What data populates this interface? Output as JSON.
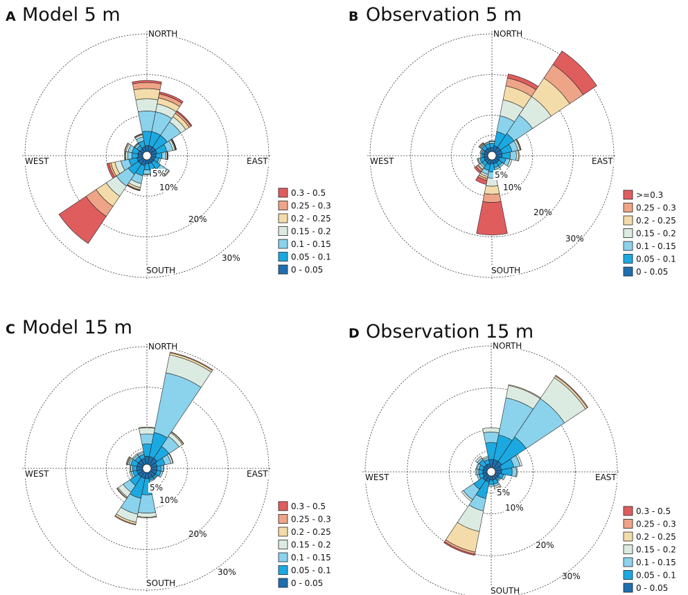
{
  "colors": {
    "bins": [
      "#1f6fb0",
      "#1ca9e1",
      "#8bd2ec",
      "#dcebe2",
      "#f4dcaa",
      "#eea487",
      "#e05d5e"
    ]
  },
  "chart_data": [
    {
      "panel": "A",
      "title": "Model 5 m",
      "type": "windrose",
      "directions": [
        "N",
        "NNE",
        "NE",
        "ENE",
        "E",
        "ESE",
        "SE",
        "SSE",
        "S",
        "SSW",
        "SW",
        "WSW",
        "W",
        "WNW",
        "NW",
        "NNW"
      ],
      "rings": [
        5,
        10,
        20,
        30
      ],
      "ring_labels": [
        "5%",
        "10%",
        "20%",
        "30%"
      ],
      "compass_labels": {
        "north": "NORTH",
        "south": "SOUTH",
        "east": "EAST",
        "west": "WEST"
      },
      "legend": [
        "0.3 - 0.5",
        "0.25 - 0.3",
        "0.2 - 0.25",
        "0.15 - 0.2",
        "0.1 - 0.15",
        "0.05 - 0.1",
        "0 - 0.05"
      ],
      "bins": [
        "0 - 0.05",
        "0.05 - 0.1",
        "0.1 - 0.15",
        "0.15 - 0.2",
        "0.2 - 0.25",
        "0.25 - 0.3",
        "0.3 - 0.5"
      ],
      "frequencies": [
        [
          1.5,
          3.5,
          5,
          3,
          2.5,
          1.5,
          0.5
        ],
        [
          1.5,
          3.5,
          5,
          2,
          1.5,
          1,
          0.5
        ],
        [
          1.5,
          3.5,
          4,
          1.5,
          1,
          0.5,
          0.3
        ],
        [
          1.5,
          2.5,
          1.5,
          0.5,
          0.2,
          0.1,
          0.1
        ],
        [
          1.2,
          1.5,
          1,
          0.3,
          0.1,
          0.1,
          0
        ],
        [
          1.0,
          1,
          0.5,
          0,
          0,
          0,
          0
        ],
        [
          1.0,
          2,
          2,
          0.5,
          0.2,
          0,
          0
        ],
        [
          1.0,
          1.5,
          1.5,
          0.5,
          0.1,
          0,
          0
        ],
        [
          1.0,
          1.5,
          1,
          0.2,
          0,
          0,
          0
        ],
        [
          1.5,
          2.5,
          2,
          1,
          0.5,
          0.2,
          0.1
        ],
        [
          1.5,
          3,
          3.5,
          3,
          3,
          3,
          8
        ],
        [
          1.5,
          2,
          2,
          1.5,
          1,
          0.5,
          0.5
        ],
        [
          1.2,
          1.5,
          1,
          0.5,
          0.2,
          0.1,
          0
        ],
        [
          1.2,
          1.5,
          1,
          0.5,
          0.3,
          0.1,
          0
        ],
        [
          1.0,
          1,
          0.5,
          0.2,
          0.1,
          0,
          0
        ],
        [
          1.2,
          1.5,
          1,
          0.5,
          0.2,
          0.1,
          0
        ]
      ]
    },
    {
      "panel": "B",
      "title": "Observation 5 m",
      "type": "windrose",
      "directions": [
        "N",
        "NNE",
        "NE",
        "ENE",
        "E",
        "ESE",
        "SE",
        "SSE",
        "S",
        "SSW",
        "SW",
        "WSW",
        "W",
        "WNW",
        "NW",
        "NNW"
      ],
      "rings": [
        5,
        10,
        20,
        30
      ],
      "ring_labels": [
        "5%",
        "10%",
        "20%",
        "30%"
      ],
      "compass_labels": {
        "north": "NORTH",
        "south": "SOUTH",
        "east": "EAST",
        "west": "WEST"
      },
      "legend": [
        ">=0.3",
        "0.25 - 0.3",
        "0.2 - 0.25",
        "0.15 - 0.2",
        "0.1 - 0.15",
        "0.05 - 0.1",
        "0 - 0.05"
      ],
      "bins": [
        "0 - 0.05",
        "0.05 - 0.1",
        "0.1 - 0.15",
        "0.15 - 0.2",
        "0.2 - 0.25",
        "0.25 - 0.3",
        ">=0.3"
      ],
      "frequencies": [
        [
          1.0,
          1,
          0.5,
          0.2,
          0,
          0,
          0
        ],
        [
          1.5,
          3.5,
          4,
          4,
          3.5,
          2,
          1
        ],
        [
          1.5,
          4,
          5.5,
          5.5,
          5.5,
          4,
          4
        ],
        [
          1.5,
          2.5,
          1.5,
          0.5,
          0.2,
          0.1,
          0
        ],
        [
          1.5,
          2,
          1.5,
          0.5,
          0.2,
          0,
          0
        ],
        [
          1.0,
          1.5,
          1,
          0.5,
          0,
          0,
          0
        ],
        [
          1.0,
          1,
          0.5,
          0,
          0,
          0,
          0
        ],
        [
          1.0,
          1,
          0.5,
          0.5,
          0,
          0,
          0
        ],
        [
          1.0,
          2,
          1.5,
          2,
          2,
          2,
          8
        ],
        [
          1.2,
          1.5,
          1,
          0.5,
          0.5,
          0.5,
          1
        ],
        [
          1.0,
          1,
          0.5,
          0.5,
          0.2,
          0.5,
          0.5
        ],
        [
          1.0,
          1,
          0.5,
          0.2,
          0,
          0,
          0
        ],
        [
          1.0,
          0.5,
          0.3,
          0,
          0,
          0,
          0
        ],
        [
          1.0,
          0.5,
          0.3,
          0.2,
          0,
          0,
          0
        ],
        [
          1.0,
          1,
          0.3,
          0.2,
          0.2,
          0.2,
          0
        ],
        [
          1.0,
          1,
          0.3,
          0.2,
          0,
          0,
          0
        ]
      ]
    },
    {
      "panel": "C",
      "title": "Model 15 m",
      "type": "windrose",
      "directions": [
        "N",
        "NNE",
        "NE",
        "ENE",
        "E",
        "ESE",
        "SE",
        "SSE",
        "S",
        "SSW",
        "SW",
        "WSW",
        "W",
        "WNW",
        "NW",
        "NNW"
      ],
      "rings": [
        5,
        10,
        20,
        30
      ],
      "ring_labels": [
        "5%",
        "10%",
        "20%",
        "30%"
      ],
      "compass_labels": {
        "north": "NORTH",
        "south": "SOUTH",
        "east": "EAST",
        "west": "WEST"
      },
      "legend": [
        "0.3 - 0.5",
        "0.25 - 0.3",
        "0.2 - 0.25",
        "0.15 - 0.2",
        "0.1 - 0.15",
        "0.05 - 0.1",
        "0 - 0.05"
      ],
      "bins": [
        "0 - 0.05",
        "0.05 - 0.1",
        "0.1 - 0.15",
        "0.15 - 0.2",
        "0.2 - 0.25",
        "0.25 - 0.3",
        "0.3 - 0.5"
      ],
      "frequencies": [
        [
          2,
          3,
          2.5,
          1.5,
          0.2,
          0,
          0
        ],
        [
          2,
          6,
          15,
          4.5,
          0.5,
          0.2,
          0
        ],
        [
          2,
          3.5,
          3,
          1,
          0.3,
          0.1,
          0
        ],
        [
          1.5,
          2,
          1.5,
          0.5,
          0.1,
          0,
          0
        ],
        [
          1.5,
          1,
          0.5,
          0.2,
          0,
          0,
          0
        ],
        [
          1.5,
          1,
          0.5,
          0,
          0,
          0,
          0
        ],
        [
          1.5,
          0.5,
          0.2,
          0,
          0,
          0,
          0
        ],
        [
          1.5,
          0.5,
          0.3,
          0,
          0,
          0,
          0
        ],
        [
          1.5,
          4,
          4.5,
          1,
          0.2,
          0,
          0
        ],
        [
          1.5,
          5,
          4,
          2,
          0.5,
          0.2,
          0
        ],
        [
          1.5,
          2.5,
          2,
          1.5,
          0.3,
          0.1,
          0
        ],
        [
          1.5,
          1,
          0.5,
          0.3,
          0,
          0,
          0
        ],
        [
          1.5,
          1,
          0.5,
          0.2,
          0,
          0,
          0
        ],
        [
          1.5,
          1.5,
          0.5,
          0.3,
          0.2,
          0.2,
          0
        ],
        [
          1.5,
          1,
          0.5,
          0.3,
          0,
          0,
          0
        ],
        [
          1.5,
          1,
          0.5,
          0.3,
          0,
          0,
          0
        ]
      ]
    },
    {
      "panel": "D",
      "title": "Observation 15 m",
      "type": "windrose",
      "directions": [
        "N",
        "NNE",
        "NE",
        "ENE",
        "E",
        "ESE",
        "SE",
        "SSE",
        "S",
        "SSW",
        "SW",
        "WSW",
        "W",
        "WNW",
        "NW",
        "NNW"
      ],
      "rings": [
        5,
        10,
        20,
        30
      ],
      "ring_labels": [
        "5%",
        "10%",
        "20%",
        "30%"
      ],
      "compass_labels": {
        "north": "NORTH",
        "south": "SOUTH",
        "east": "EAST",
        "west": "WEST"
      },
      "legend": [
        "0.3 - 0.5",
        "0.25 - 0.3",
        "0.2 - 0.25",
        "0.15 - 0.2",
        "0.1 - 0.15",
        "0.05 - 0.1",
        "0 - 0.05"
      ],
      "bins": [
        "0 - 0.05",
        "0.05 - 0.1",
        "0.1 - 0.15",
        "0.15 - 0.2",
        "0.2 - 0.25",
        "0.25 - 0.3",
        "0.3 - 0.5"
      ],
      "frequencies": [
        [
          2,
          4,
          2.5,
          1,
          0,
          0,
          0
        ],
        [
          2,
          6,
          9,
          3,
          0.2,
          0,
          0
        ],
        [
          2,
          7,
          11,
          6,
          0.5,
          0.2,
          0
        ],
        [
          1.5,
          3,
          1.5,
          0.5,
          0,
          0,
          0
        ],
        [
          1.5,
          2.5,
          1,
          0.2,
          0,
          0,
          0
        ],
        [
          1,
          1,
          0.5,
          0,
          0,
          0,
          0
        ],
        [
          1,
          0.5,
          0.3,
          0,
          0,
          0,
          0
        ],
        [
          1,
          1,
          0.5,
          0.5,
          0.3,
          0,
          0
        ],
        [
          1,
          1,
          0.5,
          0,
          0,
          0,
          0
        ],
        [
          1.5,
          4,
          3,
          5,
          5,
          0.5,
          0.3
        ],
        [
          1.5,
          2.5,
          3,
          0.5,
          0,
          0,
          0
        ],
        [
          1,
          1,
          0.5,
          0,
          0,
          0,
          0
        ],
        [
          1,
          1,
          0.5,
          0.3,
          0,
          0,
          0
        ],
        [
          1,
          1,
          0.5,
          0.2,
          0,
          0,
          0
        ],
        [
          1,
          1.5,
          0.5,
          0.5,
          0,
          0,
          0
        ],
        [
          1,
          1,
          0.5,
          0.3,
          0,
          0,
          0
        ]
      ]
    }
  ]
}
